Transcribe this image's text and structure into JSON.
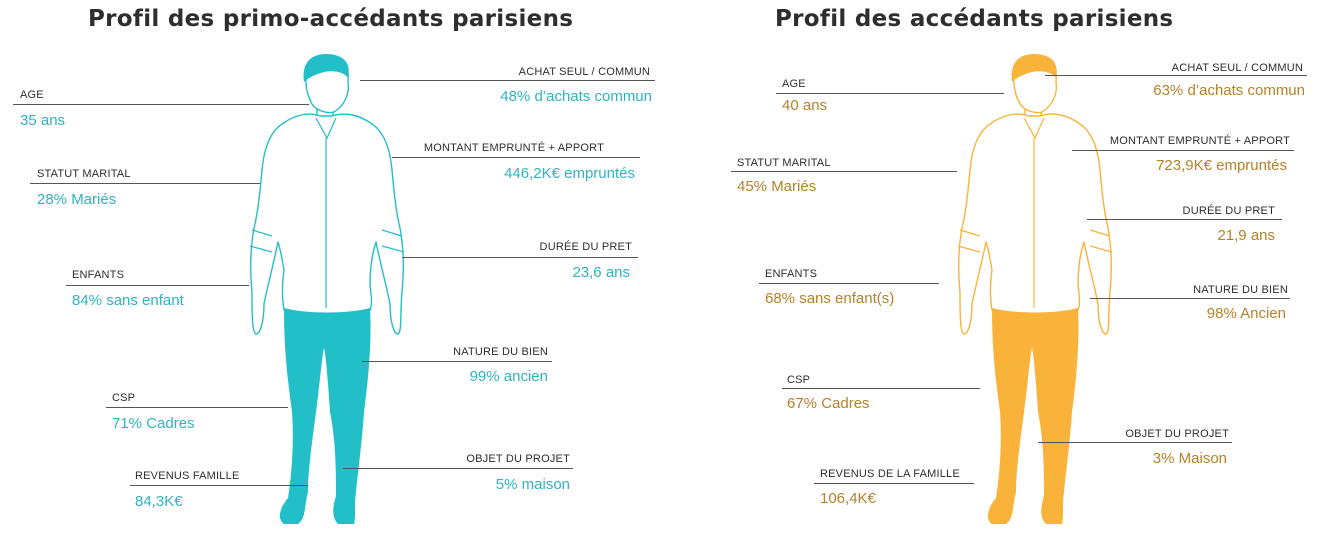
{
  "colors": {
    "primo": "#23bfc8",
    "accedant": "#f9b33b",
    "primo_text": "#2fb3c3",
    "accedant_text": "#b5812a",
    "heading": "#2e2e2e",
    "rule": "#555555"
  },
  "panels": [
    {
      "title": "Profil des primo-accédants parisiens",
      "icon": "man-figure-icon",
      "stats": [
        {
          "label": "AGE",
          "value": "35 ans"
        },
        {
          "label": "STATUT MARITAL",
          "value": "28% Mariés"
        },
        {
          "label": "ENFANTS",
          "value": "84% sans enfant"
        },
        {
          "label": "CSP",
          "value": "71% Cadres"
        },
        {
          "label": "REVENUS FAMILLE",
          "value": "84,3K€"
        },
        {
          "label": "ACHAT SEUL / COMMUN",
          "value": "48% d’achats commun"
        },
        {
          "label": "MONTANT EMPRUNTÉ + APPORT",
          "value": "446,2K€ empruntés"
        },
        {
          "label": "DURÉE DU PRET",
          "value": "23,6 ans"
        },
        {
          "label": "NATURE DU BIEN",
          "value": "99% ancien"
        },
        {
          "label": "OBJET DU PROJET",
          "value": "5% maison"
        }
      ]
    },
    {
      "title": "Profil des accédants parisiens",
      "icon": "man-figure-icon",
      "stats": [
        {
          "label": "AGE",
          "value": "40 ans"
        },
        {
          "label": "STATUT MARITAL",
          "value": "45% Mariés"
        },
        {
          "label": "ENFANTS",
          "value": "68% sans enfant(s)"
        },
        {
          "label": "CSP",
          "value": "67% Cadres"
        },
        {
          "label": "REVENUS DE LA FAMILLE",
          "value": "106,4K€"
        },
        {
          "label": "ACHAT SEUL / COMMUN",
          "value": "63% d’achats commun"
        },
        {
          "label": "MONTANT EMPRUNTÉ + APPORT",
          "value": "723,9K€ empruntés"
        },
        {
          "label": "DURÉE DU PRET",
          "value": "21,9 ans"
        },
        {
          "label": "NATURE DU BIEN",
          "value": "98% Ancien"
        },
        {
          "label": "OBJET DU PROJET",
          "value": "3% Maison"
        }
      ]
    }
  ]
}
